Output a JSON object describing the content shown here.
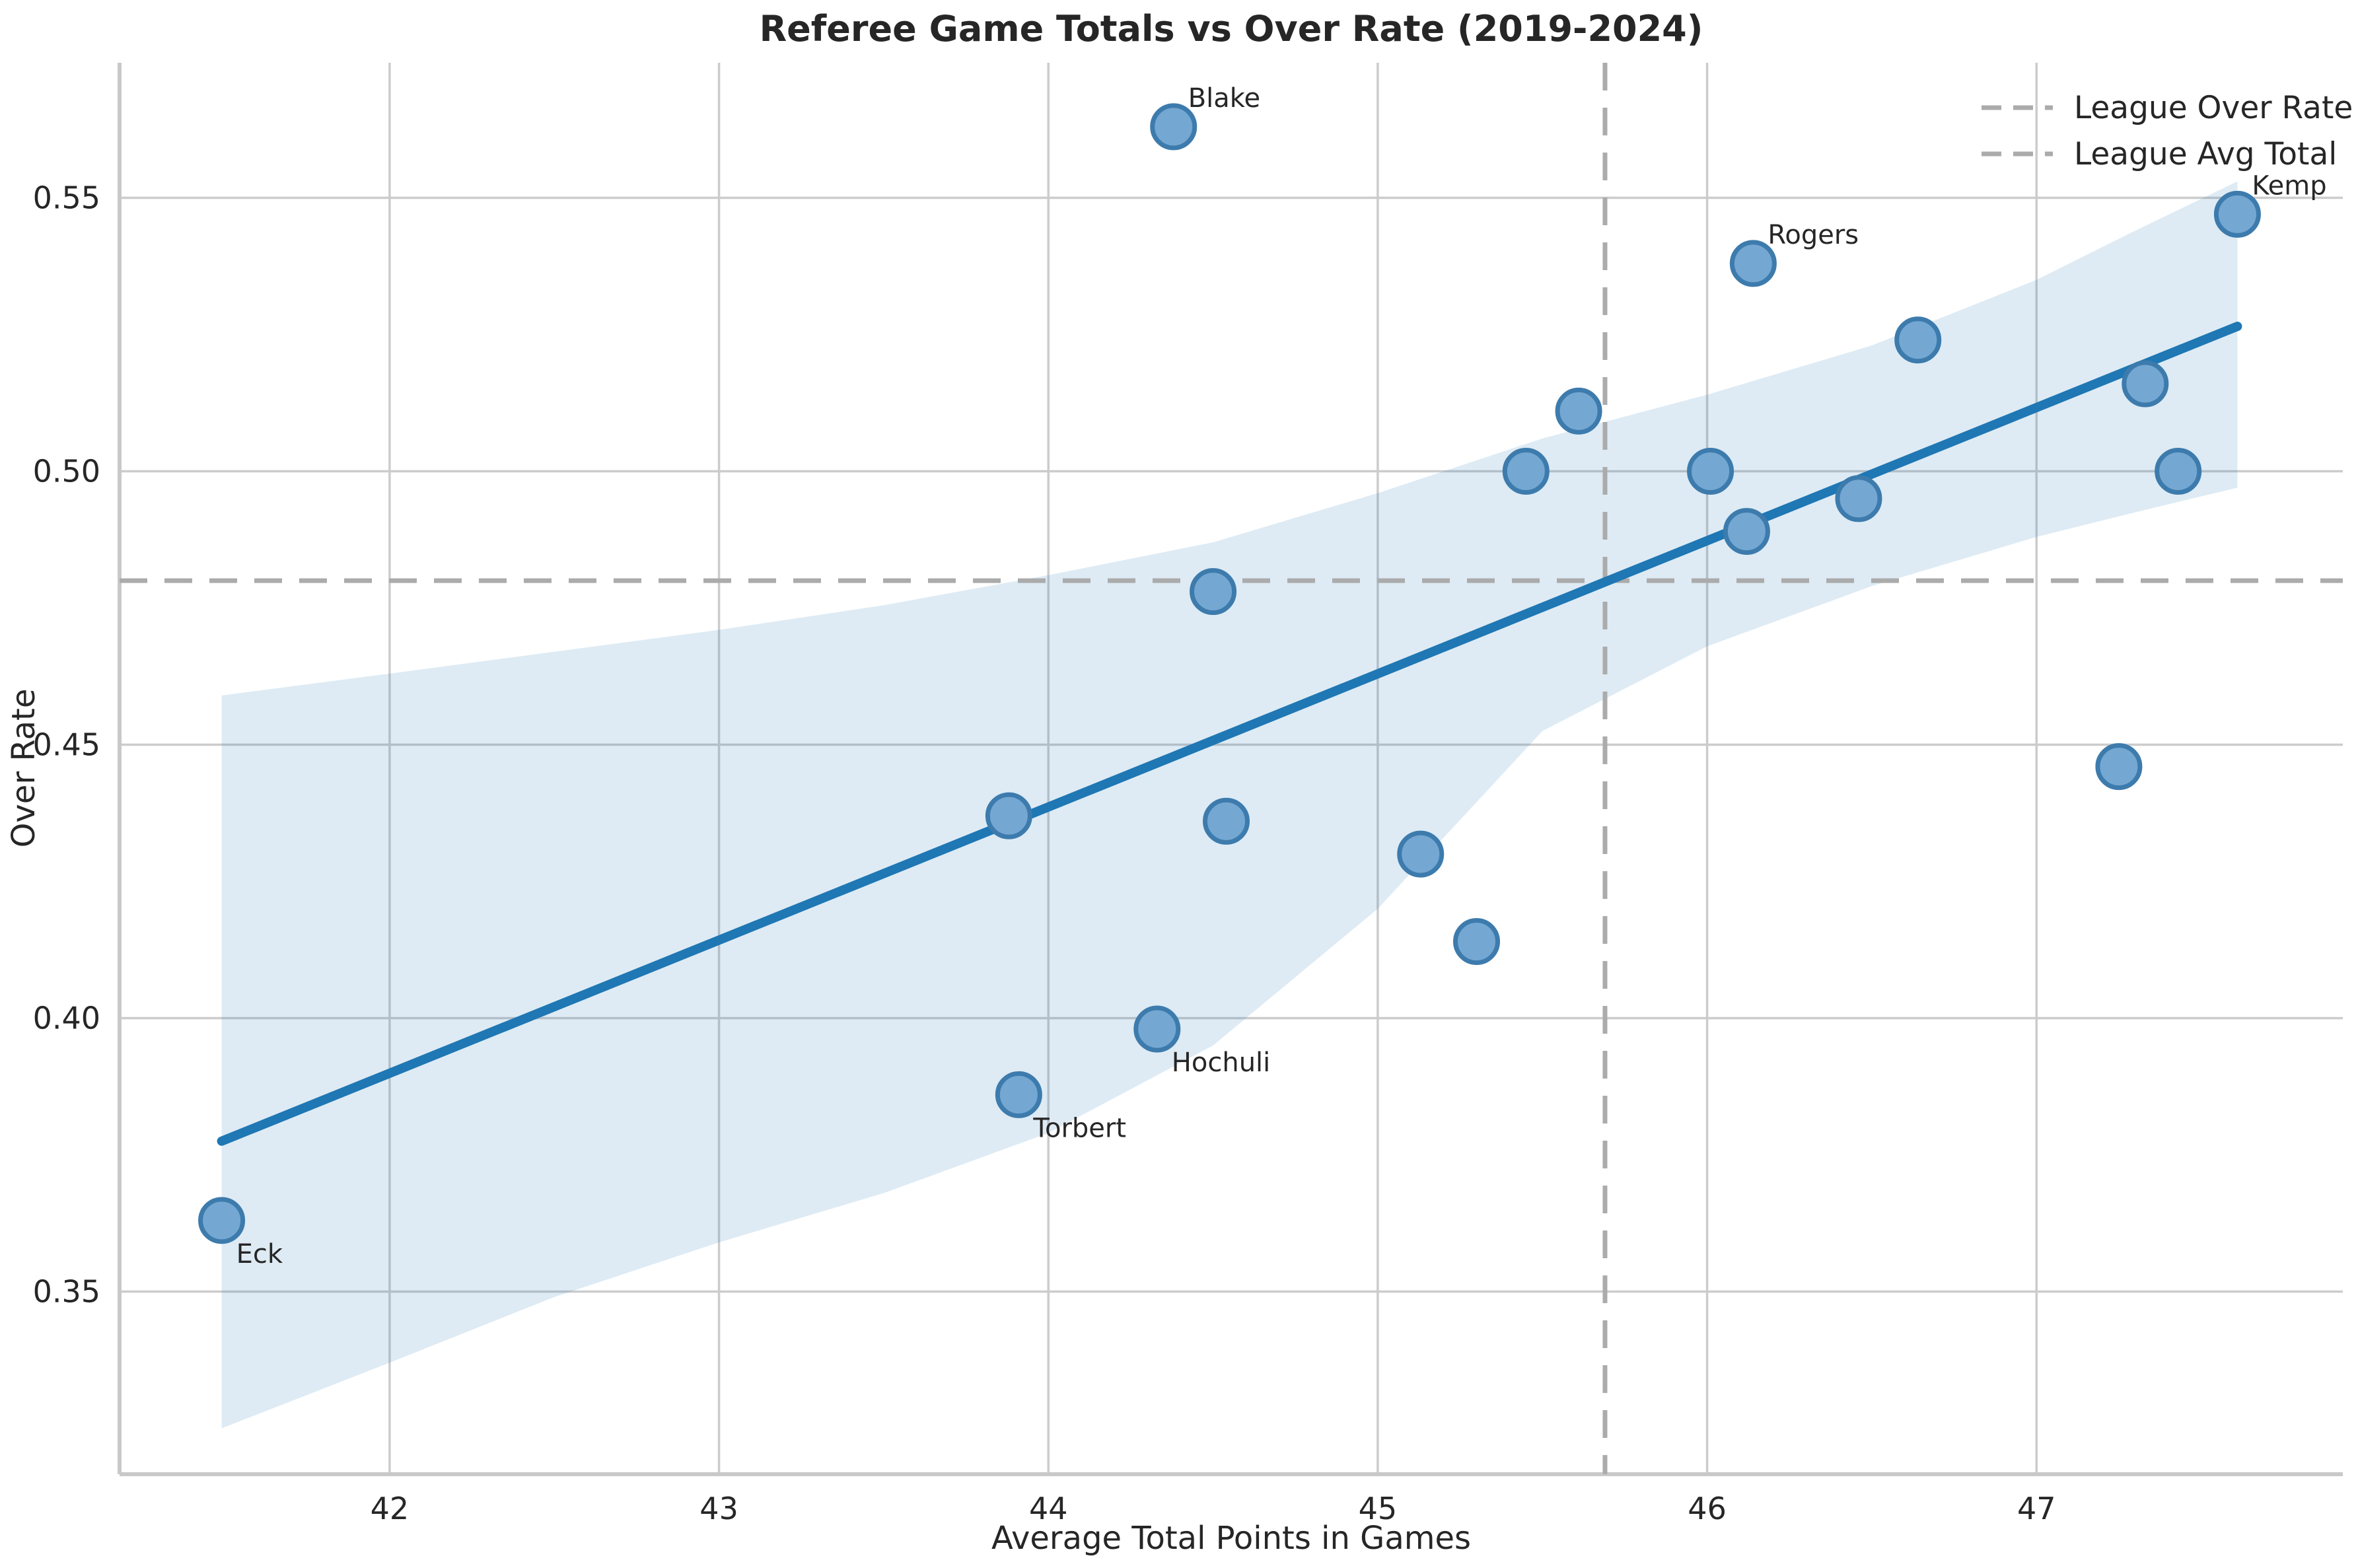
{
  "title": "Referee Game Totals vs Over Rate (2019-2024)",
  "legend": {
    "items": [
      {
        "label": "League Over Rate"
      },
      {
        "label": "League Avg Total"
      }
    ]
  },
  "colors": {
    "regression_line": "#1f77b4",
    "band_fill": "#1f77b4",
    "band_opacity": "0.15",
    "marker_fill": "#74a8d3",
    "marker_edge": "#3d7bad",
    "reference_line": "#ababab",
    "grid": "#cccccc",
    "spine": "#c9c9c9",
    "text": "#262626"
  },
  "chart_data": {
    "type": "scatter",
    "title": "Referee Game Totals vs Over Rate (2019-2024)",
    "xlabel": "Average Total Points in Games",
    "ylabel": "Over Rate",
    "xlim": [
      41.18,
      47.93
    ],
    "ylim": [
      0.3166,
      0.5747
    ],
    "x_ticks": [
      42,
      43,
      44,
      45,
      46,
      47
    ],
    "y_ticks": [
      0.35,
      0.4,
      0.45,
      0.5,
      0.55
    ],
    "grid": true,
    "legend_position": "upper right",
    "legend": [
      "League Over Rate",
      "League Avg Total"
    ],
    "reference_lines": {
      "league_over_rate": 0.48,
      "league_avg_total": 45.69
    },
    "points": [
      {
        "x": 41.49,
        "y": 0.363,
        "label": "Eck",
        "label_pos": "below"
      },
      {
        "x": 43.88,
        "y": 0.437
      },
      {
        "x": 43.91,
        "y": 0.386,
        "label": "Torbert",
        "label_pos": "below"
      },
      {
        "x": 44.33,
        "y": 0.398,
        "label": "Hochuli",
        "label_pos": "below"
      },
      {
        "x": 44.38,
        "y": 0.563,
        "label": "Blake",
        "label_pos": "above"
      },
      {
        "x": 44.5,
        "y": 0.478
      },
      {
        "x": 44.54,
        "y": 0.436
      },
      {
        "x": 45.13,
        "y": 0.43
      },
      {
        "x": 45.3,
        "y": 0.414
      },
      {
        "x": 45.45,
        "y": 0.5
      },
      {
        "x": 45.61,
        "y": 0.511
      },
      {
        "x": 46.01,
        "y": 0.5
      },
      {
        "x": 46.12,
        "y": 0.489
      },
      {
        "x": 46.14,
        "y": 0.538,
        "label": "Rogers",
        "label_pos": "above"
      },
      {
        "x": 46.46,
        "y": 0.495
      },
      {
        "x": 46.64,
        "y": 0.524
      },
      {
        "x": 47.25,
        "y": 0.446
      },
      {
        "x": 47.33,
        "y": 0.516
      },
      {
        "x": 47.43,
        "y": 0.5
      },
      {
        "x": 47.61,
        "y": 0.547,
        "label": "Kemp",
        "label_pos": "above"
      }
    ],
    "regression_line": {
      "x1": 41.49,
      "y1": 0.3775,
      "x2": 47.61,
      "y2": 0.5265
    },
    "confidence_band": {
      "x": [
        41.49,
        42.0,
        42.5,
        43.0,
        43.5,
        44.0,
        44.5,
        45.0,
        45.5,
        46.0,
        46.5,
        47.0,
        47.3,
        47.61
      ],
      "upper": [
        0.459,
        0.463,
        0.467,
        0.471,
        0.4755,
        0.481,
        0.487,
        0.496,
        0.506,
        0.514,
        0.523,
        0.535,
        0.544,
        0.553
      ],
      "lower": [
        0.325,
        0.337,
        0.349,
        0.359,
        0.368,
        0.379,
        0.395,
        0.42,
        0.4525,
        0.468,
        0.479,
        0.488,
        0.4925,
        0.497
      ]
    }
  }
}
